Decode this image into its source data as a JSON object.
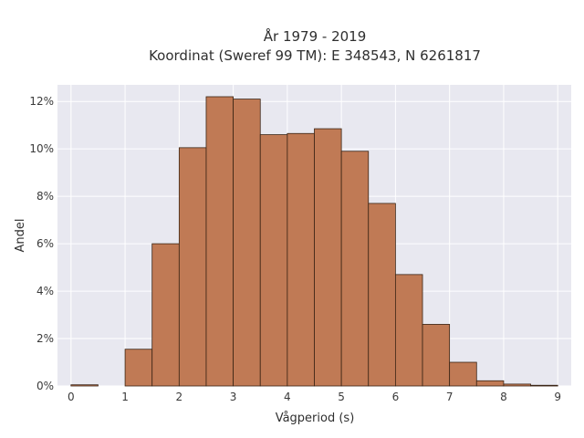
{
  "chart_data": {
    "type": "bar",
    "title_lines": [
      "År 1979 - 2019",
      "Koordinat (Sweref 99 TM): E 348543, N 6261817"
    ],
    "xlabel": "Vågperiod (s)",
    "ylabel": "Andel",
    "x_ticks": [
      0,
      1,
      2,
      3,
      4,
      5,
      6,
      7,
      8,
      9
    ],
    "y_ticks": [
      0,
      2,
      4,
      6,
      8,
      10,
      12
    ],
    "y_tick_labels": [
      "0%",
      "2%",
      "4%",
      "6%",
      "8%",
      "10%",
      "12%"
    ],
    "xlim": [
      -0.25,
      9.25
    ],
    "ylim": [
      0,
      12.7
    ],
    "bin_width": 0.5,
    "bins": [
      {
        "start": 0.0,
        "value": 0.05
      },
      {
        "start": 0.5,
        "value": 0.0
      },
      {
        "start": 1.0,
        "value": 1.55
      },
      {
        "start": 1.5,
        "value": 6.0
      },
      {
        "start": 2.0,
        "value": 10.05
      },
      {
        "start": 2.5,
        "value": 12.2
      },
      {
        "start": 3.0,
        "value": 12.1
      },
      {
        "start": 3.5,
        "value": 10.6
      },
      {
        "start": 4.0,
        "value": 10.65
      },
      {
        "start": 4.5,
        "value": 10.85
      },
      {
        "start": 5.0,
        "value": 9.9
      },
      {
        "start": 5.5,
        "value": 7.7
      },
      {
        "start": 6.0,
        "value": 4.7
      },
      {
        "start": 6.5,
        "value": 2.6
      },
      {
        "start": 7.0,
        "value": 1.0
      },
      {
        "start": 7.5,
        "value": 0.22
      },
      {
        "start": 8.0,
        "value": 0.08
      },
      {
        "start": 8.5,
        "value": 0.03
      }
    ],
    "grid": true,
    "colors": {
      "bar_fill": "#c07a55",
      "bar_edge": "#3a2414",
      "plot_background": "#e8e8f0",
      "grid": "#ffffff"
    }
  }
}
